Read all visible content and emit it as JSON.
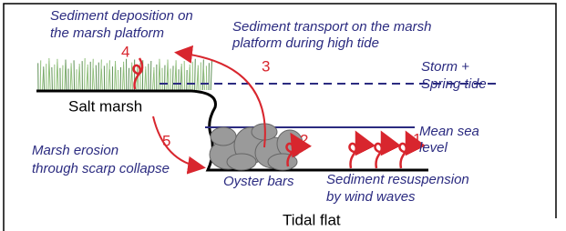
{
  "labels": {
    "deposition": [
      "Sediment deposition on",
      "the marsh platform"
    ],
    "transport": [
      "Sediment transport on the marsh",
      "platform during high tide"
    ],
    "storm": [
      "Storm +",
      "Spring tide"
    ],
    "salt_marsh": "Salt marsh",
    "mean_sea_level": [
      "Mean sea",
      "level"
    ],
    "erosion": [
      "Marsh erosion",
      "through scarp collapse"
    ],
    "oyster_bars": "Oyster bars",
    "resuspension": [
      "Sediment resuspension",
      "by wind waves"
    ],
    "tidal_flat": "Tidal flat"
  },
  "numbers": [
    "1",
    "2",
    "3",
    "4",
    "5"
  ]
}
